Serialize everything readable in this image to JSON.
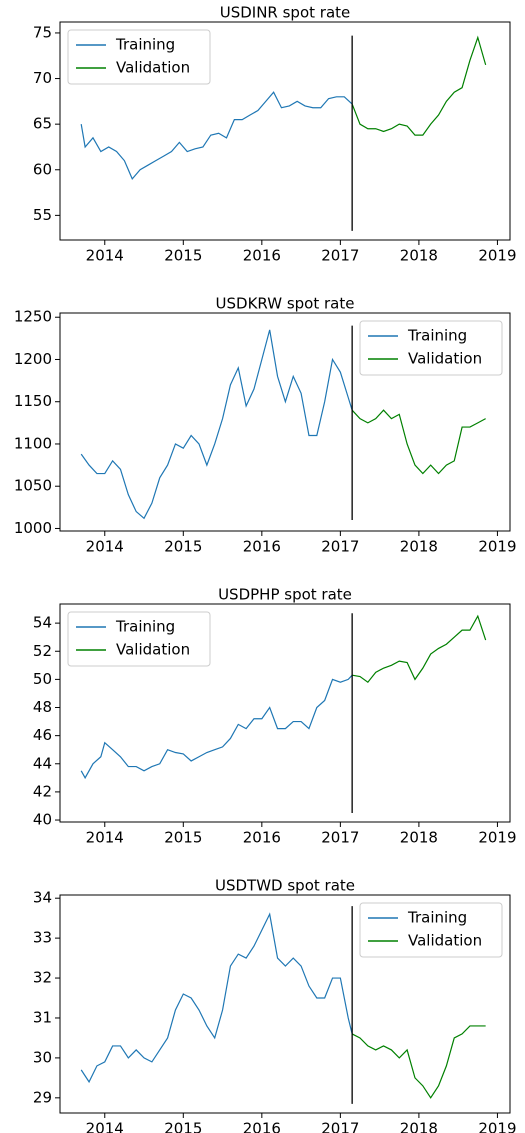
{
  "chart_data": [
    {
      "type": "line",
      "title": "USDINR spot rate",
      "legend": "upper left",
      "xlim": [
        2013.43,
        2019.16
      ],
      "xticks": [
        2014,
        2015,
        2016,
        2017,
        2018,
        2019
      ],
      "ylim": [
        52.3,
        76.2
      ],
      "yticks": [
        55,
        60,
        65,
        70,
        75
      ],
      "vline": {
        "x": 2017.15,
        "y": [
          53.3,
          74.7
        ],
        "color": "#000000"
      },
      "series": [
        {
          "name": "Training",
          "color": "#1f77b4",
          "x": [
            2013.7,
            2013.75,
            2013.85,
            2013.95,
            2014.05,
            2014.15,
            2014.25,
            2014.35,
            2014.45,
            2014.55,
            2014.65,
            2014.75,
            2014.85,
            2014.95,
            2015.05,
            2015.15,
            2015.25,
            2015.35,
            2015.45,
            2015.55,
            2015.65,
            2015.75,
            2015.85,
            2015.95,
            2016.05,
            2016.15,
            2016.25,
            2016.35,
            2016.45,
            2016.55,
            2016.65,
            2016.75,
            2016.85,
            2016.95,
            2017.05,
            2017.15
          ],
          "values": [
            65,
            62.5,
            63.5,
            62,
            62.5,
            62,
            61,
            59,
            60,
            60.5,
            61,
            61.5,
            62,
            63,
            62,
            62.3,
            62.5,
            63.8,
            64,
            63.5,
            65.5,
            65.5,
            66,
            66.5,
            67.5,
            68.5,
            66.8,
            67,
            67.5,
            67,
            66.8,
            66.8,
            67.8,
            68,
            68,
            67.2
          ]
        },
        {
          "name": "Validation",
          "color": "#008000",
          "x": [
            2017.15,
            2017.25,
            2017.35,
            2017.45,
            2017.55,
            2017.65,
            2017.75,
            2017.85,
            2017.95,
            2018.05,
            2018.15,
            2018.25,
            2018.35,
            2018.45,
            2018.55,
            2018.65,
            2018.75,
            2018.85
          ],
          "values": [
            67.2,
            65,
            64.5,
            64.5,
            64.2,
            64.5,
            65,
            64.8,
            63.8,
            63.8,
            65,
            66,
            67.5,
            68.5,
            69,
            72,
            74.5,
            71.5
          ]
        }
      ]
    },
    {
      "type": "line",
      "title": "USDKRW spot rate",
      "legend": "upper right",
      "xlim": [
        2013.43,
        2019.16
      ],
      "xticks": [
        2014,
        2015,
        2016,
        2017,
        2018,
        2019
      ],
      "ylim": [
        997,
        1255
      ],
      "yticks": [
        1000,
        1050,
        1100,
        1150,
        1200,
        1250
      ],
      "vline": {
        "x": 2017.15,
        "y": [
          1010,
          1240
        ],
        "color": "#000000"
      },
      "series": [
        {
          "name": "Training",
          "color": "#1f77b4",
          "x": [
            2013.7,
            2013.8,
            2013.9,
            2014.0,
            2014.1,
            2014.2,
            2014.3,
            2014.4,
            2014.5,
            2014.6,
            2014.7,
            2014.8,
            2014.9,
            2015.0,
            2015.1,
            2015.2,
            2015.3,
            2015.4,
            2015.5,
            2015.6,
            2015.7,
            2015.8,
            2015.9,
            2016.0,
            2016.1,
            2016.2,
            2016.3,
            2016.4,
            2016.5,
            2016.6,
            2016.7,
            2016.8,
            2016.9,
            2017.0,
            2017.1,
            2017.15
          ],
          "values": [
            1088,
            1075,
            1065,
            1065,
            1080,
            1070,
            1040,
            1020,
            1012,
            1030,
            1060,
            1075,
            1100,
            1095,
            1110,
            1100,
            1075,
            1100,
            1130,
            1170,
            1190,
            1145,
            1165,
            1200,
            1235,
            1180,
            1150,
            1180,
            1160,
            1110,
            1110,
            1150,
            1200,
            1185,
            1155,
            1140
          ]
        },
        {
          "name": "Validation",
          "color": "#008000",
          "x": [
            2017.15,
            2017.25,
            2017.35,
            2017.45,
            2017.55,
            2017.65,
            2017.75,
            2017.85,
            2017.95,
            2018.05,
            2018.15,
            2018.25,
            2018.35,
            2018.45,
            2018.55,
            2018.65,
            2018.75,
            2018.85
          ],
          "values": [
            1140,
            1130,
            1125,
            1130,
            1140,
            1130,
            1135,
            1100,
            1075,
            1065,
            1075,
            1065,
            1075,
            1080,
            1120,
            1120,
            1125,
            1130
          ]
        }
      ]
    },
    {
      "type": "line",
      "title": "USDPHP spot rate",
      "legend": "upper left",
      "xlim": [
        2013.43,
        2019.16
      ],
      "xticks": [
        2014,
        2015,
        2016,
        2017,
        2018,
        2019
      ],
      "ylim": [
        39.86,
        55.36
      ],
      "yticks": [
        40,
        42,
        44,
        46,
        48,
        50,
        52,
        54
      ],
      "vline": {
        "x": 2017.15,
        "y": [
          40.5,
          54.7
        ],
        "color": "#000000"
      },
      "series": [
        {
          "name": "Training",
          "color": "#1f77b4",
          "x": [
            2013.7,
            2013.75,
            2013.85,
            2013.95,
            2014.0,
            2014.1,
            2014.2,
            2014.3,
            2014.4,
            2014.5,
            2014.6,
            2014.7,
            2014.8,
            2014.9,
            2015.0,
            2015.1,
            2015.2,
            2015.3,
            2015.4,
            2015.5,
            2015.6,
            2015.7,
            2015.8,
            2015.9,
            2016.0,
            2016.1,
            2016.2,
            2016.3,
            2016.4,
            2016.5,
            2016.6,
            2016.7,
            2016.8,
            2016.9,
            2017.0,
            2017.1,
            2017.15
          ],
          "values": [
            43.5,
            43,
            44,
            44.5,
            45.5,
            45,
            44.5,
            43.8,
            43.8,
            43.5,
            43.8,
            44,
            45,
            44.8,
            44.7,
            44.2,
            44.5,
            44.8,
            45,
            45.2,
            45.8,
            46.8,
            46.5,
            47.2,
            47.2,
            48,
            46.5,
            46.5,
            47,
            47,
            46.5,
            48,
            48.5,
            50,
            49.8,
            50,
            50.3
          ]
        },
        {
          "name": "Validation",
          "color": "#008000",
          "x": [
            2017.15,
            2017.25,
            2017.35,
            2017.45,
            2017.55,
            2017.65,
            2017.75,
            2017.85,
            2017.95,
            2018.05,
            2018.15,
            2018.25,
            2018.35,
            2018.45,
            2018.55,
            2018.65,
            2018.75,
            2018.85
          ],
          "values": [
            50.3,
            50.2,
            49.8,
            50.5,
            50.8,
            51,
            51.3,
            51.2,
            50,
            50.8,
            51.8,
            52.2,
            52.5,
            53,
            53.5,
            53.5,
            54.5,
            52.8
          ]
        }
      ]
    },
    {
      "type": "line",
      "title": "USDTWD spot rate",
      "legend": "upper right",
      "xlim": [
        2013.43,
        2019.16
      ],
      "xticks": [
        2014,
        2015,
        2016,
        2017,
        2018,
        2019
      ],
      "ylim": [
        28.62,
        34.08
      ],
      "yticks": [
        29,
        30,
        31,
        32,
        33,
        34
      ],
      "vline": {
        "x": 2017.15,
        "y": [
          28.85,
          33.8
        ],
        "color": "#000000"
      },
      "series": [
        {
          "name": "Training",
          "color": "#1f77b4",
          "x": [
            2013.7,
            2013.8,
            2013.9,
            2014.0,
            2014.1,
            2014.2,
            2014.3,
            2014.4,
            2014.5,
            2014.6,
            2014.7,
            2014.8,
            2014.9,
            2015.0,
            2015.1,
            2015.2,
            2015.3,
            2015.4,
            2015.5,
            2015.6,
            2015.7,
            2015.8,
            2015.9,
            2016.0,
            2016.1,
            2016.2,
            2016.3,
            2016.4,
            2016.5,
            2016.6,
            2016.7,
            2016.8,
            2016.9,
            2017.0,
            2017.1,
            2017.15
          ],
          "values": [
            29.7,
            29.4,
            29.8,
            29.9,
            30.3,
            30.3,
            30.0,
            30.2,
            30.0,
            29.9,
            30.2,
            30.5,
            31.2,
            31.6,
            31.5,
            31.2,
            30.8,
            30.5,
            31.2,
            32.3,
            32.6,
            32.5,
            32.8,
            33.2,
            33.6,
            32.5,
            32.3,
            32.5,
            32.3,
            31.8,
            31.5,
            31.5,
            32.0,
            32.0,
            31.0,
            30.6
          ]
        },
        {
          "name": "Validation",
          "color": "#008000",
          "x": [
            2017.15,
            2017.25,
            2017.35,
            2017.45,
            2017.55,
            2017.65,
            2017.75,
            2017.85,
            2017.95,
            2018.05,
            2018.15,
            2018.25,
            2018.35,
            2018.45,
            2018.55,
            2018.65,
            2018.75,
            2018.85
          ],
          "values": [
            30.6,
            30.5,
            30.3,
            30.2,
            30.3,
            30.2,
            30.0,
            30.2,
            29.5,
            29.3,
            29.0,
            29.3,
            29.8,
            30.5,
            30.6,
            30.8,
            30.8,
            30.8
          ]
        }
      ]
    }
  ]
}
